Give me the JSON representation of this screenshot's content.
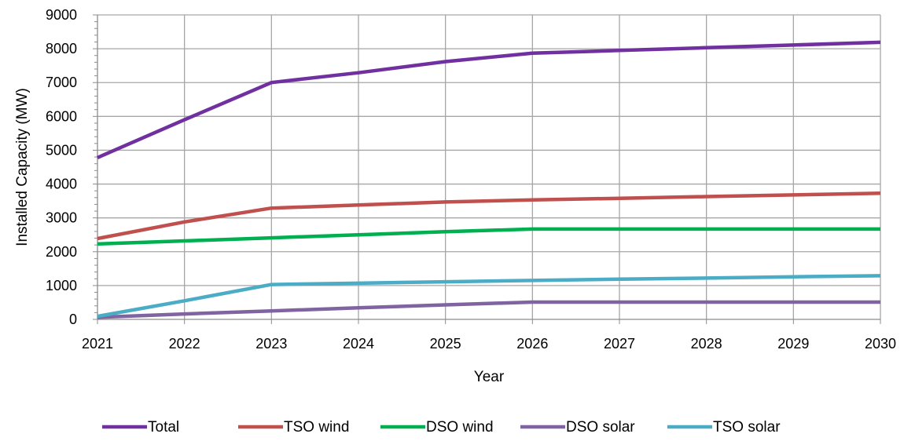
{
  "chart_data": {
    "type": "line",
    "title": "",
    "xlabel": "Year",
    "ylabel": "Installed Capacity (MW)",
    "x": [
      2021,
      2022,
      2023,
      2024,
      2025,
      2026,
      2027,
      2028,
      2029,
      2030
    ],
    "x_tick_labels": [
      "2021",
      "2022",
      "2023",
      "2024",
      "2025",
      "2026",
      "2027",
      "2028",
      "2029",
      "2030"
    ],
    "y_tick_labels": [
      "0",
      "1000",
      "2000",
      "3000",
      "4000",
      "5000",
      "6000",
      "7000",
      "8000",
      "9000"
    ],
    "xlim": [
      2021,
      2030
    ],
    "ylim": [
      0,
      9000
    ],
    "y_major_step": 1000,
    "y_minor_step": 200,
    "grid": true,
    "legend_position": "bottom",
    "series": [
      {
        "name": "Total",
        "color": "#7030A0",
        "values": [
          4780,
          5900,
          7000,
          7290,
          7620,
          7870,
          7950,
          8030,
          8110,
          8190
        ]
      },
      {
        "name": "TSO wind",
        "color": "#C0504D",
        "values": [
          2390,
          2880,
          3290,
          3380,
          3470,
          3530,
          3580,
          3630,
          3680,
          3730
        ]
      },
      {
        "name": "DSO wind",
        "color": "#00B050",
        "values": [
          2230,
          2320,
          2410,
          2500,
          2590,
          2670,
          2670,
          2670,
          2670,
          2670
        ]
      },
      {
        "name": "DSO solar",
        "color": "#8064A2",
        "values": [
          60,
          160,
          250,
          340,
          430,
          510,
          510,
          510,
          510,
          510
        ]
      },
      {
        "name": "TSO solar",
        "color": "#4BACC6",
        "values": [
          90,
          550,
          1030,
          1070,
          1110,
          1150,
          1190,
          1220,
          1260,
          1290
        ]
      }
    ]
  }
}
